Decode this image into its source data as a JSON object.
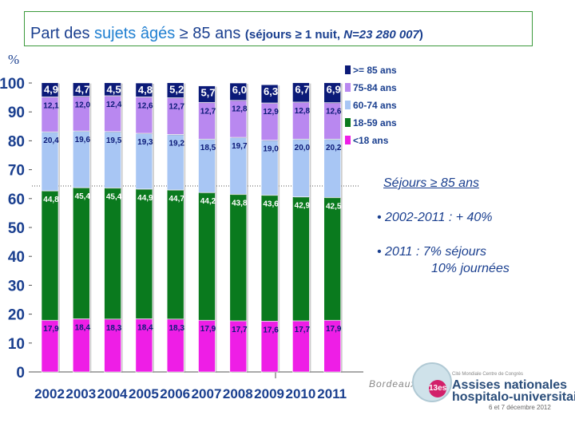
{
  "title": {
    "part1": "Part des ",
    "part2": "sujets âgés",
    "part3": " ≥ 85 ans ",
    "part4": "(séjours ≥ 1 nuit, ",
    "part5": "N=23 280 007",
    "part6": ")"
  },
  "colors": {
    "s85": "#0b1a78",
    "s75": "#b988f0",
    "s60": "#a8c6f4",
    "s18": "#0a7a1e",
    "s0": "#ee1ee6"
  },
  "chart_data": {
    "type": "bar",
    "stacked": true,
    "y_unit_label": "%",
    "ylim": [
      0,
      100
    ],
    "yticks": [
      "0",
      "10",
      "20",
      "30",
      "40",
      "50",
      "60",
      "70",
      "80",
      "90",
      "100"
    ],
    "categories": [
      "2002",
      "2003",
      "2004",
      "2005",
      "2006",
      "2007",
      "2008",
      "2009",
      "2010",
      "2011"
    ],
    "series": [
      {
        "key": "s0",
        "name": "<18 ans",
        "values": [
          17.9,
          18.4,
          18.3,
          18.4,
          18.3,
          17.9,
          17.7,
          17.6,
          17.7,
          17.9
        ],
        "labels": [
          "17,9",
          "18,4",
          "18,3",
          "18,4",
          "18,3",
          "17,9",
          "17,7",
          "17,6",
          "17,7",
          "17,9"
        ]
      },
      {
        "key": "s18",
        "name": "18-59 ans",
        "values": [
          44.8,
          45.4,
          45.4,
          44.9,
          44.7,
          44.2,
          43.8,
          43.6,
          42.9,
          42.5
        ],
        "labels": [
          "44,8",
          "45,4",
          "45,4",
          "44,9",
          "44,7",
          "44,2",
          "43,8",
          "43,6",
          "42,9",
          "42,5"
        ]
      },
      {
        "key": "s60",
        "name": "60-74 ans",
        "values": [
          20.4,
          19.6,
          19.5,
          19.3,
          19.2,
          18.5,
          19.7,
          19.0,
          20.0,
          20.2
        ],
        "labels": [
          "20,4",
          "19,6",
          "19,5",
          "19,3",
          "19,2",
          "18,5",
          "19,7",
          "19,0",
          "20,0",
          "20,2"
        ]
      },
      {
        "key": "s75",
        "name": "75-84 ans",
        "values": [
          12.1,
          12.0,
          12.4,
          12.6,
          12.7,
          12.7,
          12.8,
          12.9,
          12.8,
          12.6
        ],
        "labels": [
          "12,1",
          "12,0",
          "12,4",
          "12,6",
          "12,7",
          "12,7",
          "12,8",
          "12,9",
          "12,8",
          "12,6"
        ]
      },
      {
        "key": "s85",
        "name": ">= 85 ans",
        "values": [
          4.9,
          4.7,
          4.5,
          4.8,
          5.2,
          5.7,
          6.0,
          6.3,
          6.7,
          6.9
        ],
        "labels": [
          "4,9",
          "4,7",
          "4,5",
          "4,8",
          "5,2",
          "5,7",
          "6,0",
          "6,3",
          "6,7",
          "6,9"
        ]
      }
    ],
    "legend_order": [
      "s85",
      "s75",
      "s60",
      "s18",
      "s0"
    ]
  },
  "notes": {
    "heading": "Séjours ≥ 85 ans",
    "bullet1": "2002-2011 :  + 40%",
    "bullet2": "2011 :   7% séjours",
    "bullet3": "10% journées"
  },
  "logo": {
    "left": "Bordeaux",
    "badge": "13es",
    "small": "Cité Mondiale Centre de Congrès",
    "line1": "Assises nationales",
    "line2": "hospitalo-universitaires",
    "date": "6 et 7 décembre 2012"
  }
}
